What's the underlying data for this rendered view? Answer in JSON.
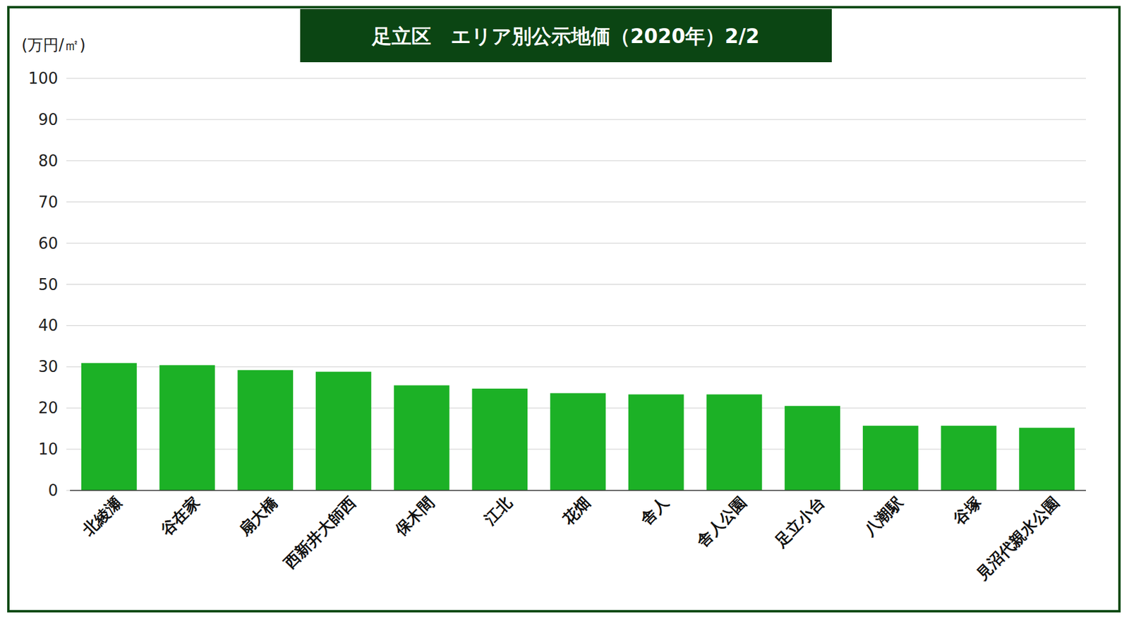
{
  "chart_data": {
    "type": "bar",
    "title": "足立区　エリア別公示地価（2020年）2/2",
    "y_label": "(万円/㎡)",
    "categories": [
      "北綾瀬",
      "谷在家",
      "扇大橋",
      "西新井大師西",
      "保木間",
      "江北",
      "花畑",
      "舎人",
      "舎人公園",
      "足立小台",
      "八潮駅",
      "谷塚",
      "見沼代親水公園"
    ],
    "values": [
      30.9,
      30.4,
      29.2,
      28.8,
      25.5,
      24.7,
      23.6,
      23.3,
      23.3,
      20.5,
      15.7,
      15.7,
      15.2
    ],
    "color": "#1cb126",
    "ylim": [
      0,
      100
    ],
    "yticks": [
      0,
      10,
      20,
      30,
      40,
      50,
      60,
      70,
      80,
      90,
      100
    ],
    "grid": true
  }
}
